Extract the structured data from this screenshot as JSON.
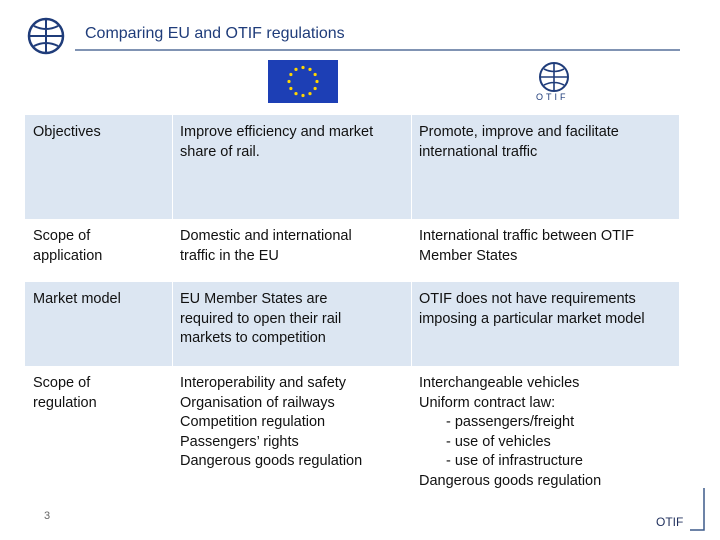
{
  "header": {
    "title": "Comparing EU and OTIF regulations",
    "otif_logo_text": "OTIF"
  },
  "table": {
    "rows": [
      [
        [
          "Objectives"
        ],
        [
          "Improve efficiency and market",
          "share of rail."
        ],
        [
          "Promote, improve and facilitate",
          "international traffic"
        ]
      ],
      [
        [
          "Scope of",
          "application"
        ],
        [
          "Domestic and international",
          "traffic in the EU"
        ],
        [
          "International traffic between OTIF",
          "Member States"
        ]
      ],
      [
        [
          "Market model"
        ],
        [
          "EU Member States are",
          "required to open their rail",
          "markets to competition"
        ],
        [
          "OTIF does not have requirements",
          "imposing a particular market model"
        ]
      ],
      [
        [
          "Scope of",
          "regulation"
        ],
        [
          "Interoperability and safety",
          "Organisation of railways",
          "Competition regulation",
          "Passengers’ rights",
          "Dangerous goods regulation"
        ],
        [
          "Interchangeable vehicles",
          "Uniform contract law:",
          "- passengers/freight",
          "- use of vehicles",
          "- use of infrastructure",
          "Dangerous goods regulation"
        ]
      ]
    ]
  },
  "footer": {
    "page_number": "3",
    "brand": "OTIF"
  }
}
